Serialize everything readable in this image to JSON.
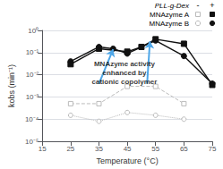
{
  "chart_data": {
    "type": "line",
    "log": "y",
    "xlabel": "Temperature (°C)",
    "ylabel": "kobs (min⁻¹)",
    "xlim": [
      15,
      75
    ],
    "xticks": [
      15,
      25,
      35,
      45,
      55,
      65,
      75
    ],
    "ylim": [
      1e-05,
      1
    ],
    "yticks": [
      {
        "value": 1e-05,
        "label": "10⁻⁵"
      },
      {
        "value": 0.0001,
        "label": "10⁻⁴"
      },
      {
        "value": 0.001,
        "label": "10⁻³"
      },
      {
        "value": 0.01,
        "label": "10⁻²"
      },
      {
        "value": 0.1,
        "label": "10⁻¹"
      },
      {
        "value": 1,
        "label": "10⁰"
      }
    ],
    "grid": true,
    "legend": "upper right",
    "legend_header": "PLL-g-Dex",
    "legend_columns": [
      "-",
      "+"
    ],
    "legend_rows": [
      "MNAzyme A",
      "MNAzyme B"
    ],
    "series": [
      {
        "name": "MNAzyme B",
        "legend_column": "-",
        "color": "#bbbbbb",
        "marker": "circle-open",
        "line_style": "dotted",
        "x": [
          25,
          35,
          45,
          55,
          65
        ],
        "values": [
          0.00015,
          8e-05,
          0.0002,
          0.00015,
          0.0001
        ]
      },
      {
        "name": "MNAzyme A",
        "legend_column": "-",
        "color": "#bbbbbb",
        "marker": "square-open",
        "line_style": "dashed",
        "x": [
          25,
          35,
          45,
          55,
          65
        ],
        "values": [
          0.0005,
          0.0005,
          0.003,
          0.003,
          0.0005
        ]
      },
      {
        "name": "MNAzyme B",
        "legend_column": "+",
        "color": "#111111",
        "marker": "circle",
        "line_style": "solid",
        "x": [
          25,
          35,
          40,
          45,
          55,
          65,
          75
        ],
        "values": [
          0.04,
          0.18,
          0.15,
          0.09,
          0.35,
          0.07,
          0.004
        ]
      },
      {
        "name": "MNAzyme A",
        "legend_column": "+",
        "color": "#111111",
        "marker": "square",
        "line_style": "solid",
        "x": [
          25,
          35,
          45,
          50,
          55,
          65,
          75
        ],
        "values": [
          0.03,
          0.15,
          0.11,
          0.18,
          0.4,
          0.25,
          0.0035
        ]
      }
    ],
    "annotations": [
      {
        "text": "MNAzyme activity\nenhanced by\ncationic copolymer",
        "x": 44,
        "y": 0.012
      }
    ],
    "arrows": [
      {
        "from": [
          35,
          0.004
        ],
        "to": [
          40,
          0.14
        ],
        "color": "#4da6e8"
      },
      {
        "from": [
          52,
          0.004
        ],
        "to": [
          53,
          0.32
        ],
        "color": "#4da6e8"
      }
    ]
  }
}
